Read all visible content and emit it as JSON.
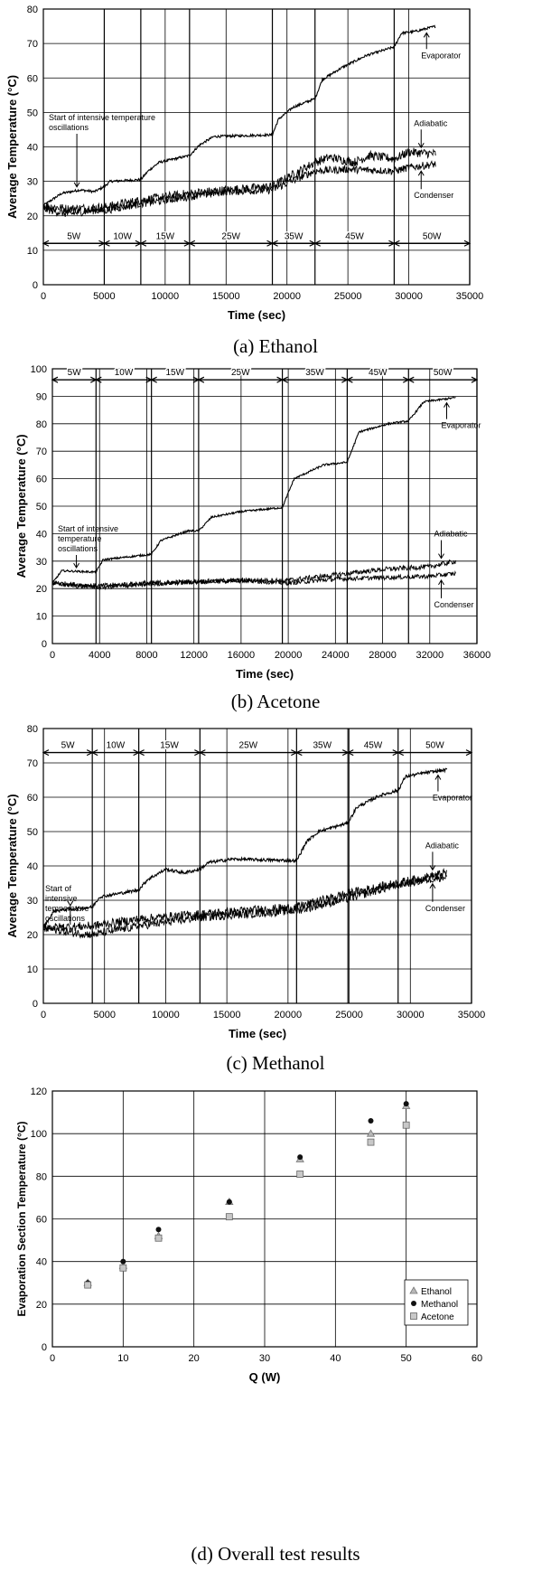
{
  "chart_data": [
    {
      "type": "line",
      "caption": "(a) Ethanol",
      "xlabel": "Time (sec)",
      "ylabel": "Average Temperature (°C)",
      "xlim": [
        0,
        35000
      ],
      "ylim": [
        0,
        80
      ],
      "xticks": [
        0,
        5000,
        10000,
        15000,
        20000,
        25000,
        30000,
        35000
      ],
      "xtick_labels": [
        "0",
        "5000",
        "10000",
        "15000",
        "20000",
        "25000",
        "30000",
        "35000"
      ],
      "yticks": [
        0,
        10,
        20,
        30,
        40,
        50,
        60,
        70,
        80
      ],
      "grid": true,
      "power_row_y": 12,
      "power_steps": [
        {
          "label": "5W",
          "x0": 0,
          "x1": 5000
        },
        {
          "label": "10W",
          "x0": 5000,
          "x1": 8000
        },
        {
          "label": "15W",
          "x0": 8000,
          "x1": 12000
        },
        {
          "label": "25W",
          "x0": 12000,
          "x1": 18800
        },
        {
          "label": "35W",
          "x0": 18800,
          "x1": 22300
        },
        {
          "label": "45W",
          "x0": 22300,
          "x1": 28800
        },
        {
          "label": "50W",
          "x0": 28800,
          "x1": 35000
        }
      ],
      "series": [
        {
          "name": "Evaporator",
          "x": [
            0,
            1500,
            3000,
            4200,
            5000,
            5500,
            8000,
            8600,
            9500,
            12000,
            12800,
            14000,
            18800,
            19300,
            20500,
            22300,
            22900,
            24500,
            26500,
            28800,
            29400,
            30500,
            32200
          ],
          "y": [
            23,
            26.5,
            27.5,
            27,
            28.5,
            30,
            30.5,
            33,
            35.5,
            37.5,
            40.5,
            43,
            43.5,
            48,
            51.5,
            54,
            59.5,
            63,
            66.5,
            69,
            73,
            73.5,
            75
          ]
        },
        {
          "name": "Adiabatic",
          "x": [
            0,
            2000,
            5000,
            8000,
            12000,
            15000,
            18800,
            20000,
            22300,
            23500,
            25500,
            26800,
            28800,
            30000,
            32200
          ],
          "y": [
            23,
            22,
            22.5,
            24.5,
            26.5,
            27.5,
            28.5,
            31,
            35.5,
            37,
            35.5,
            37.5,
            36.5,
            38.5,
            38
          ]
        },
        {
          "name": "Condenser",
          "x": [
            0,
            2000,
            4000,
            5000,
            8000,
            12000,
            15000,
            18800,
            20000,
            22300,
            25000,
            28800,
            30000,
            32200
          ],
          "y": [
            22,
            20.5,
            21.5,
            21.5,
            23.5,
            25.5,
            27,
            27.5,
            29.5,
            33,
            33.5,
            33,
            34,
            35
          ]
        }
      ],
      "labels": {
        "evaporator": "Evaporator",
        "adiabatic": "Adiabatic",
        "condenser": "Condenser"
      },
      "annotation": "Start of intensive temperature oscillations"
    },
    {
      "type": "line",
      "caption": "(b) Acetone",
      "xlabel": "Time (sec)",
      "ylabel": "Average Temperature (°C)",
      "xlim": [
        0,
        36000
      ],
      "ylim": [
        0,
        100
      ],
      "xticks": [
        0,
        4000,
        8000,
        12000,
        16000,
        20000,
        24000,
        28000,
        32000,
        36000
      ],
      "xtick_labels": [
        "0",
        "4000",
        "8000",
        "12000",
        "16000",
        "20000",
        "24000",
        "28000",
        "32000",
        "36000"
      ],
      "yticks": [
        0,
        10,
        20,
        30,
        40,
        50,
        60,
        70,
        80,
        90,
        100
      ],
      "grid": true,
      "power_row_y": 96,
      "power_steps": [
        {
          "label": "5W",
          "x0": 0,
          "x1": 3700
        },
        {
          "label": "10W",
          "x0": 3700,
          "x1": 8400
        },
        {
          "label": "15W",
          "x0": 8400,
          "x1": 12400
        },
        {
          "label": "25W",
          "x0": 12400,
          "x1": 19500
        },
        {
          "label": "35W",
          "x0": 19500,
          "x1": 25000
        },
        {
          "label": "45W",
          "x0": 25000,
          "x1": 30200
        },
        {
          "label": "50W",
          "x0": 30200,
          "x1": 36000
        }
      ],
      "series": [
        {
          "name": "Evaporator",
          "x": [
            0,
            800,
            3700,
            4300,
            8400,
            9200,
            11500,
            12400,
            13500,
            16000,
            19500,
            20500,
            23000,
            25000,
            26000,
            28500,
            30200,
            31500,
            34200
          ],
          "y": [
            22,
            26.5,
            26,
            30.5,
            32.5,
            37.5,
            41,
            41,
            46,
            48,
            49.5,
            60,
            65,
            66,
            77,
            80,
            81,
            88,
            89.5
          ]
        },
        {
          "name": "Adiabatic",
          "x": [
            0,
            4000,
            8000,
            16000,
            20000,
            24000,
            28000,
            32000,
            34200
          ],
          "y": [
            22,
            21,
            22,
            23,
            23,
            25,
            27,
            28,
            30
          ]
        },
        {
          "name": "Condenser",
          "x": [
            0,
            2000,
            4000,
            8000,
            12000,
            16000,
            20000,
            24000,
            28000,
            32000,
            34200
          ],
          "y": [
            22,
            21,
            20.5,
            21.5,
            22.5,
            23,
            22,
            23.5,
            24,
            24.5,
            25.5
          ]
        }
      ],
      "labels": {
        "evaporator": "Evaporator",
        "adiabatic": "Adiabatic",
        "condenser": "Condenser"
      },
      "annotation": "Start of intensive temperature oscillations"
    },
    {
      "type": "line",
      "caption": "(c) Methanol",
      "xlabel": "Time (sec)",
      "ylabel": "Average Temperature (°C)",
      "xlim": [
        0,
        35000
      ],
      "ylim": [
        0,
        80
      ],
      "xticks": [
        0,
        5000,
        10000,
        15000,
        20000,
        25000,
        30000,
        35000
      ],
      "xtick_labels": [
        "0",
        "5000",
        "10000",
        "15000",
        "20000",
        "25000",
        "30000",
        "35000"
      ],
      "yticks": [
        0,
        10,
        20,
        30,
        40,
        50,
        60,
        70,
        80
      ],
      "grid": true,
      "power_row_y": 73,
      "power_steps": [
        {
          "label": "5W",
          "x0": 0,
          "x1": 4000
        },
        {
          "label": "10W",
          "x0": 4000,
          "x1": 7800
        },
        {
          "label": "15W",
          "x0": 7800,
          "x1": 12800
        },
        {
          "label": "25W",
          "x0": 12800,
          "x1": 20700
        },
        {
          "label": "35W",
          "x0": 20700,
          "x1": 24900
        },
        {
          "label": "45W",
          "x0": 24900,
          "x1": 29000
        },
        {
          "label": "50W",
          "x0": 29000,
          "x1": 35000
        }
      ],
      "series": [
        {
          "name": "Evaporator",
          "x": [
            0,
            900,
            4000,
            4600,
            7800,
            8500,
            10000,
            11500,
            12800,
            13500,
            15500,
            20700,
            21500,
            22500,
            24900,
            25600,
            27500,
            29000,
            29600,
            31000,
            33000
          ],
          "y": [
            22,
            27,
            28,
            31,
            33,
            36,
            39,
            38,
            39,
            41,
            42,
            41.5,
            47,
            50,
            52.5,
            57,
            60.5,
            62,
            66,
            67,
            68
          ]
        },
        {
          "name": "Adiabatic",
          "x": [
            0,
            4000,
            7800,
            12800,
            20700,
            24900,
            29000,
            33000
          ],
          "y": [
            22,
            22.5,
            24.5,
            26,
            28,
            32,
            35,
            38
          ]
        },
        {
          "name": "Condenser",
          "x": [
            0,
            2500,
            4000,
            7800,
            12800,
            20700,
            24900,
            29000,
            33000
          ],
          "y": [
            22,
            20.5,
            20,
            22.5,
            25,
            27,
            30.5,
            34.5,
            37
          ]
        }
      ],
      "labels": {
        "evaporator": "Evaporator",
        "adiabatic": "Adiabatic",
        "condenser": "Condenser"
      },
      "annotation": "Start of intensive temperature oscillations"
    },
    {
      "type": "scatter",
      "caption": "(d) Overall test results",
      "xlabel": "Q (W)",
      "ylabel": "Evaporation Section Temperature (°C)",
      "xlim": [
        0,
        60
      ],
      "ylim": [
        0,
        120
      ],
      "xticks": [
        0,
        10,
        20,
        30,
        40,
        50,
        60
      ],
      "xtick_labels": [
        "0",
        "10",
        "20",
        "30",
        "40",
        "50",
        "60"
      ],
      "yticks": [
        0,
        20,
        40,
        60,
        80,
        100,
        120
      ],
      "grid": true,
      "legend_position": "bottom-right",
      "series": [
        {
          "name": "Ethanol",
          "marker": "triangle",
          "x": [
            5,
            10,
            15,
            25,
            35,
            45,
            50
          ],
          "y": [
            30,
            38,
            52,
            68,
            88,
            100,
            113
          ]
        },
        {
          "name": "Methanol",
          "marker": "circle",
          "x": [
            5,
            10,
            15,
            25,
            35,
            45,
            50
          ],
          "y": [
            30,
            40,
            55,
            68,
            89,
            106,
            114
          ]
        },
        {
          "name": "Acetone",
          "marker": "square",
          "x": [
            5,
            10,
            15,
            25,
            35,
            45,
            50
          ],
          "y": [
            29,
            37,
            51,
            61,
            81,
            96,
            104
          ]
        }
      ]
    }
  ]
}
